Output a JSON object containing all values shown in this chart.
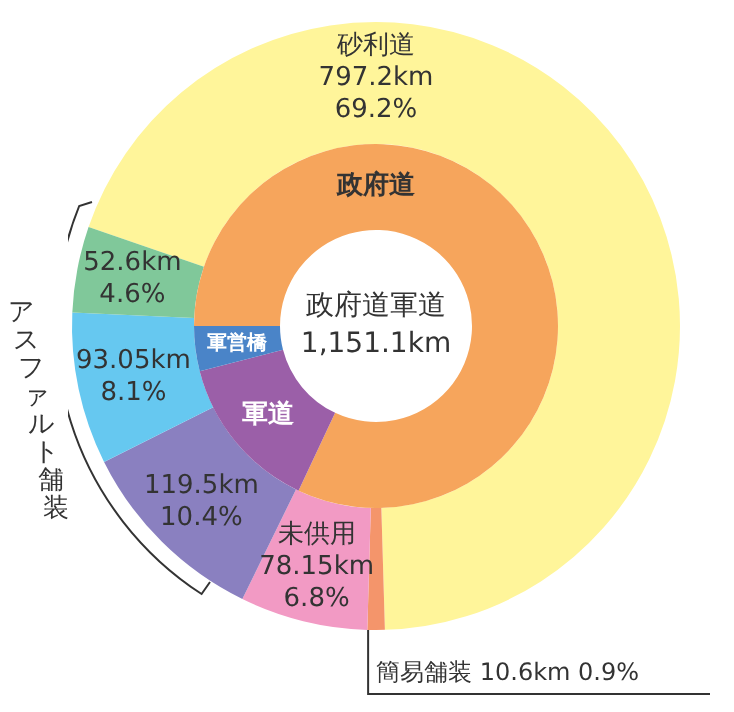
{
  "chart_data": [
    {
      "type": "donut",
      "categories": [
        "砂利道",
        "簡易舗装",
        "未供用",
        null,
        null,
        null
      ],
      "values": [
        797.2,
        10.6,
        78.15,
        119.5,
        93.05,
        52.6
      ],
      "colors": [
        "#fff59a",
        "#f4956b",
        "#f29ac4",
        "#8a80c0",
        "#66c8f0",
        "#80c89a"
      ],
      "value_labels": [
        "797.2km 69.2%",
        "10.6km 0.9%",
        "78.15km 6.8%",
        "119.5km 10.4%",
        "93.05km 8.1%",
        "52.6km 4.6%"
      ],
      "annotations": [
        "アスファルト舗装"
      ],
      "legend": false
    },
    {
      "type": "donut",
      "categories": [
        "政府道",
        "軍道",
        "軍営橋"
      ],
      "values": [
        82,
        14,
        4
      ],
      "colors": [
        "#f6a55c",
        "#9b5fa8",
        "#4a84c8"
      ],
      "annotations": [
        "政府道軍道",
        "1,151.1km"
      ],
      "legend": false
    }
  ]
}
